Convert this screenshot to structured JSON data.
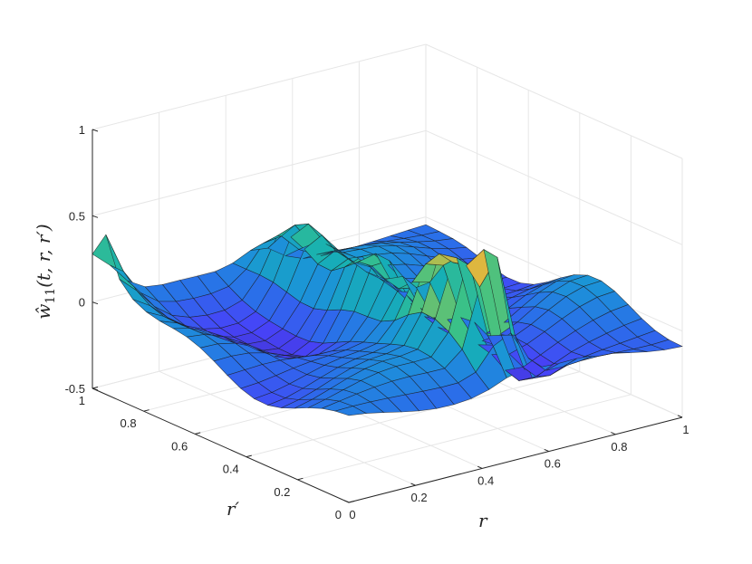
{
  "chart_data": {
    "type": "surface",
    "title": "",
    "colormap": "parula",
    "colormap_colors": [
      "#3e26a8",
      "#4743f8",
      "#2a6fe9",
      "#1b94d7",
      "#16b0b4",
      "#3dc285",
      "#a4be55",
      "#f2b537",
      "#f9fb15"
    ],
    "grid": true,
    "xlabel": "r",
    "ylabel": "r′",
    "zlabel_parts": {
      "base": "ŵ",
      "sub": "11",
      "args": "(t, r, r′)"
    },
    "xlim": [
      0,
      1
    ],
    "ylim": [
      0,
      1
    ],
    "zlim": [
      -0.5,
      1
    ],
    "x_ticks": [
      "0",
      "0.2",
      "0.4",
      "0.6",
      "0.8",
      "1"
    ],
    "y_ticks": [
      "0",
      "0.2",
      "0.4",
      "0.6",
      "0.8",
      "1"
    ],
    "z_ticks": [
      "-0.5",
      "0",
      "0.5",
      "1"
    ],
    "x_tick_values": [
      0,
      0.2,
      0.4,
      0.6,
      0.8,
      1
    ],
    "y_tick_values": [
      0,
      0.2,
      0.4,
      0.6,
      0.8,
      1
    ],
    "z_tick_values": [
      -0.5,
      0,
      0.5,
      1
    ],
    "grid_resolution": [
      19,
      19
    ],
    "surface_features": {
      "baseline": -0.04,
      "corner_values": {
        "r0_rp0": 0.0,
        "r1_rp0": 0.02,
        "r1_rp1": 0.0,
        "r0_rp1": 0.2
      },
      "ridge_along_r": [
        {
          "r": 0.5,
          "r_prime": 0.25,
          "z": 0.62
        },
        {
          "r": 0.5,
          "r_prime": 0.55,
          "z": 0.35
        },
        {
          "r": 0.5,
          "r_prime": 0.85,
          "z": 0.3
        }
      ],
      "peak_near_origin": {
        "r": 0.05,
        "r_prime": 0.5,
        "z": 0.6
      },
      "spike_at_edge": {
        "r": 0.0,
        "r_prime": 0.95,
        "z": 0.35
      },
      "valleys_z": -0.25
    }
  }
}
